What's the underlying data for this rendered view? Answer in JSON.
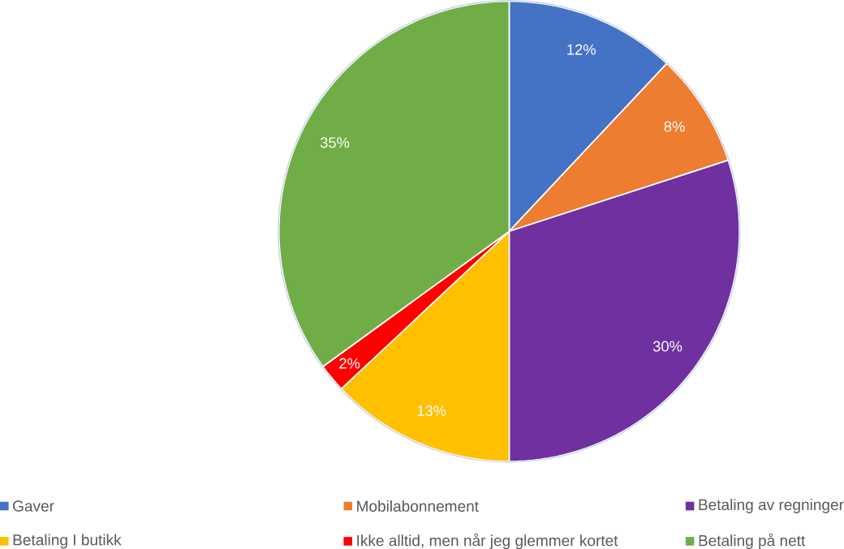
{
  "chart_data": {
    "type": "pie",
    "categories": [
      "Gaver",
      "Mobilabonnement",
      "Betaling av regninger",
      "Betaling I butikk",
      "Ikke alltid, men når jeg glemmer kortet",
      "Betaling på nett"
    ],
    "values": [
      12,
      8,
      30,
      13,
      2,
      35
    ],
    "value_labels": [
      "12%",
      "8%",
      "30%",
      "13%",
      "2%",
      "35%"
    ],
    "colors": [
      "#4472c4",
      "#ed7d31",
      "#7030a0",
      "#ffc000",
      "#ff0000",
      "#70ad47"
    ],
    "legend": "bottom"
  }
}
